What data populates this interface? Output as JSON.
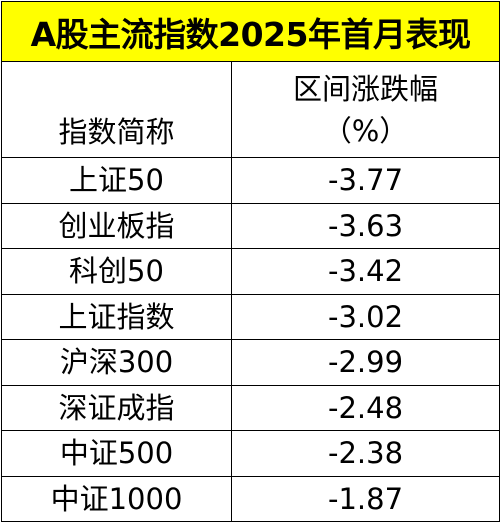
{
  "title": "A股主流指数2025年首月表现",
  "header": {
    "col1": "指数简称",
    "col2_line1": "区间涨跌幅",
    "col2_line2": "（%）"
  },
  "rows": [
    {
      "name": "上证50",
      "value": "-3.77"
    },
    {
      "name": "创业板指",
      "value": "-3.63"
    },
    {
      "name": "科创50",
      "value": "-3.42"
    },
    {
      "name": "上证指数",
      "value": "-3.02"
    },
    {
      "name": "沪深300",
      "value": "-2.99"
    },
    {
      "name": "深证成指",
      "value": "-2.48"
    },
    {
      "name": "中证500",
      "value": "-2.38"
    },
    {
      "name": "中证1000",
      "value": "-1.87"
    }
  ],
  "colors": {
    "title_bg": "#ffff00",
    "border": "#000000",
    "text": "#000000"
  },
  "chart_data": {
    "type": "table",
    "title": "A股主流指数2025年首月表现",
    "columns": [
      "指数简称",
      "区间涨跌幅（%）"
    ],
    "categories": [
      "上证50",
      "创业板指",
      "科创50",
      "上证指数",
      "沪深300",
      "深证成指",
      "中证500",
      "中证1000"
    ],
    "values": [
      -3.77,
      -3.63,
      -3.42,
      -3.02,
      -2.99,
      -2.48,
      -2.38,
      -1.87
    ]
  }
}
